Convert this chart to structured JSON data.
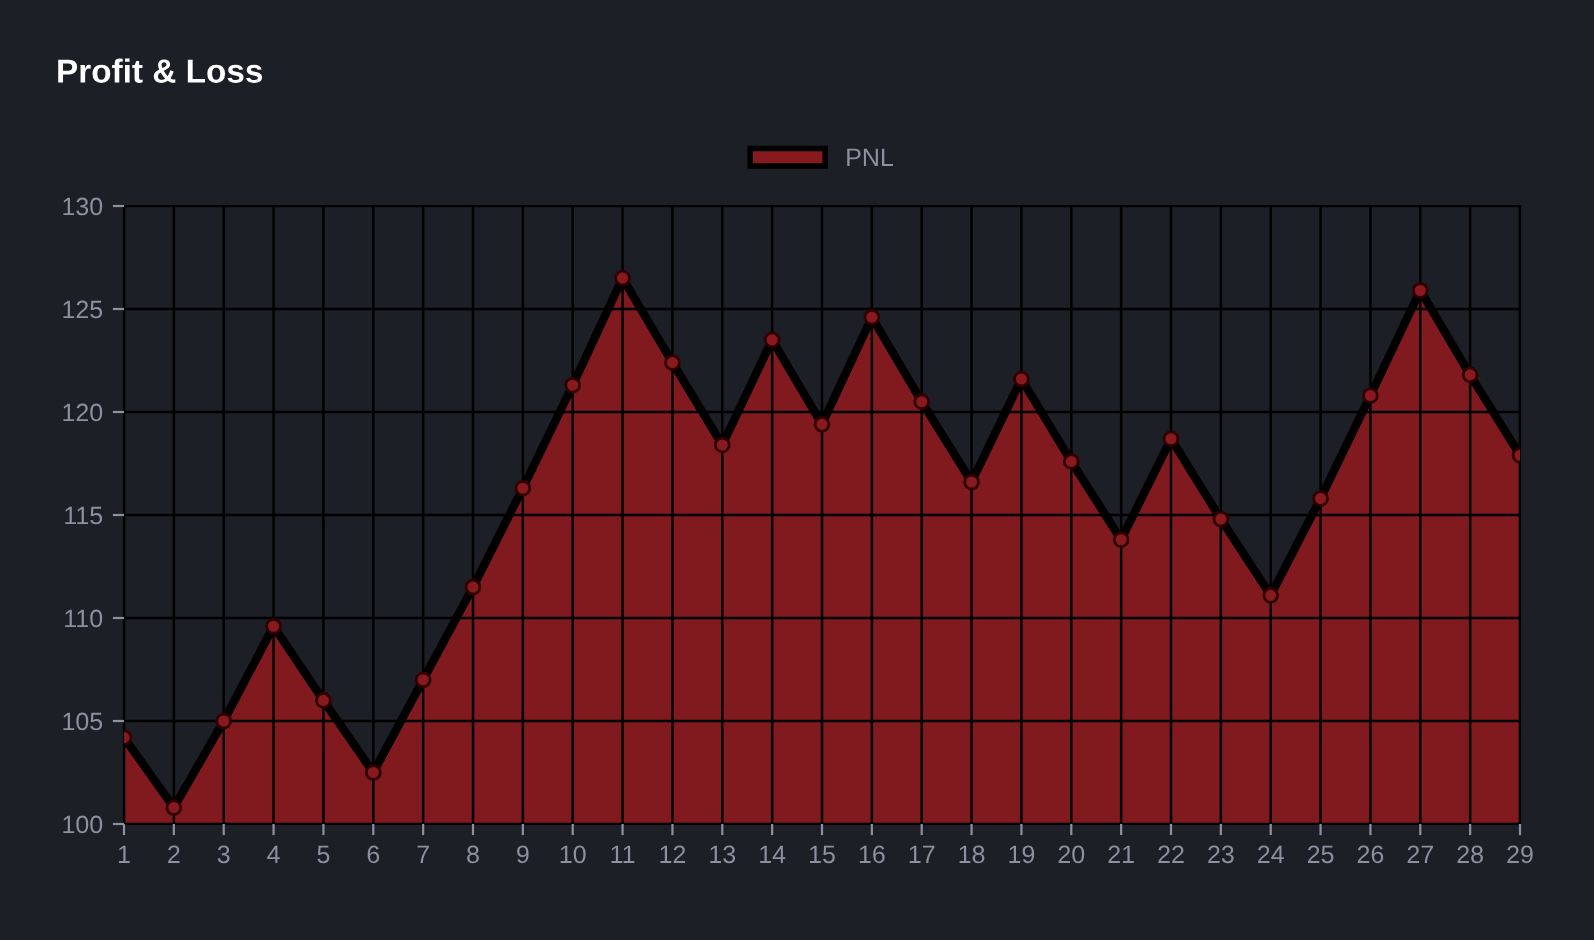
{
  "chart_data": {
    "type": "area",
    "title": "Profit & Loss",
    "categories": [
      "1",
      "2",
      "3",
      "4",
      "5",
      "6",
      "7",
      "8",
      "9",
      "10",
      "11",
      "12",
      "13",
      "14",
      "15",
      "16",
      "17",
      "18",
      "19",
      "20",
      "21",
      "22",
      "23",
      "24",
      "25",
      "26",
      "27",
      "28",
      "29"
    ],
    "series": [
      {
        "name": "PNL",
        "color": "#861a1f",
        "values": [
          104.2,
          100.8,
          105.0,
          109.6,
          106.0,
          102.5,
          107.0,
          111.5,
          116.3,
          121.3,
          126.5,
          122.4,
          118.4,
          123.5,
          119.4,
          124.6,
          120.5,
          116.6,
          121.6,
          117.6,
          113.8,
          118.7,
          114.8,
          111.1,
          115.8,
          120.8,
          125.9,
          121.8,
          117.9
        ]
      }
    ],
    "ylim": [
      100,
      130
    ],
    "yticks": [
      100,
      105,
      110,
      115,
      120,
      125,
      130
    ],
    "grid": true,
    "legend": "top",
    "marker": "circle",
    "line_style": "solid"
  }
}
